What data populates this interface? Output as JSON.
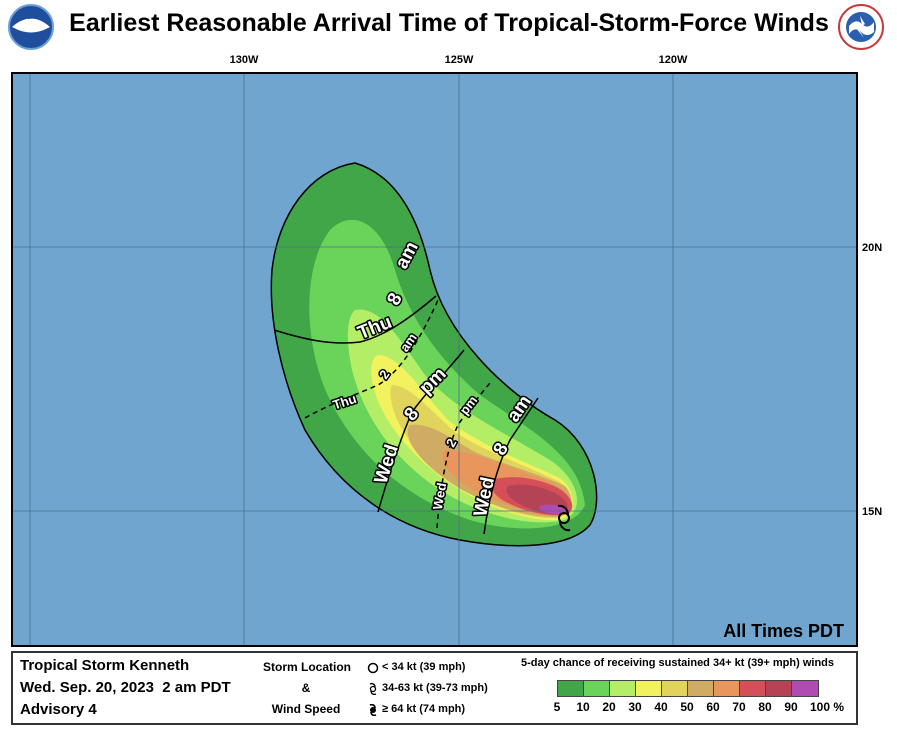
{
  "title": "Earliest Reasonable Arrival Time of Tropical-Storm-Force Winds",
  "logos": {
    "left": "noaa-logo",
    "right": "nws-logo"
  },
  "map": {
    "lon_labels": [
      "130W",
      "125W",
      "120W"
    ],
    "lat_labels": [
      "20N",
      "15N"
    ],
    "ocean_color": "#6fa5cf",
    "times_note": "All Times PDT",
    "arrival_lines": [
      {
        "style": "solid",
        "label": "Thu 8 am"
      },
      {
        "style": "dashed",
        "label": "Thu 2 am"
      },
      {
        "style": "solid",
        "label": "Wed 8 pm"
      },
      {
        "style": "dashed",
        "label": "Wed 2 pm"
      },
      {
        "style": "solid",
        "label": "Wed 8 am"
      }
    ]
  },
  "legend": {
    "storm_name": "Tropical Storm Kenneth",
    "datetime": "Wed. Sep. 20, 2023  2 am PDT",
    "advisory": "Advisory 4",
    "location_label": [
      "Storm Location",
      "&",
      "Wind Speed"
    ],
    "location_items": [
      {
        "icon": "open-circle-icon",
        "text": "< 34 kt (39 mph)"
      },
      {
        "icon": "tropical-storm-symbol-icon",
        "text": "34-63 kt (39-73 mph)"
      },
      {
        "icon": "hurricane-symbol-icon",
        "text": "≥ 64 kt (74 mph)"
      }
    ],
    "prob_title": "5-day chance of receiving sustained 34+ kt (39+ mph) winds",
    "prob_colors": [
      "#41a647",
      "#6ad35a",
      "#b4ee67",
      "#f2f25e",
      "#e0d45c",
      "#d0ab63",
      "#e8965c",
      "#d44f57",
      "#b44355",
      "#b04bb4"
    ],
    "prob_labels": [
      "5",
      "10",
      "20",
      "30",
      "40",
      "50",
      "60",
      "70",
      "80",
      "90",
      "100 %"
    ]
  }
}
